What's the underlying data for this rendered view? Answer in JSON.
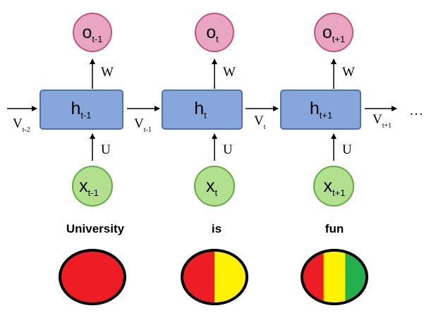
{
  "steps": [
    {
      "output": {
        "base": "o",
        "sub": "t-1"
      },
      "hidden": {
        "base": "h",
        "sub": "t-1"
      },
      "input": {
        "base": "x",
        "sub": "t-1"
      },
      "word": "University",
      "weight_out": "W",
      "weight_in": "U",
      "stripe_colors": [
        "#ee1c25"
      ]
    },
    {
      "output": {
        "base": "o",
        "sub": "t"
      },
      "hidden": {
        "base": "h",
        "sub": "t"
      },
      "input": {
        "base": "x",
        "sub": "t"
      },
      "word": "is",
      "weight_out": "W",
      "weight_in": "U",
      "stripe_colors": [
        "#ee1c25",
        "#fff200"
      ]
    },
    {
      "output": {
        "base": "o",
        "sub": "t+1"
      },
      "hidden": {
        "base": "h",
        "sub": "t+1"
      },
      "input": {
        "base": "x",
        "sub": "t+1"
      },
      "word": "fun",
      "weight_out": "W",
      "weight_in": "U",
      "stripe_colors": [
        "#ee1c25",
        "#fff200",
        "#22b14c"
      ]
    }
  ],
  "transitions": [
    {
      "base": "V",
      "sub": "t-2"
    },
    {
      "base": "V",
      "sub": "t-1"
    },
    {
      "base": "V",
      "sub": "t"
    },
    {
      "base": "V",
      "sub": "t+1"
    }
  ],
  "continuation": "…",
  "colors": {
    "output_fill": "#e8a6c3",
    "output_stroke": "#c2527f",
    "hidden_fill": "#87a6dc",
    "hidden_stroke": "#4f6fae",
    "input_fill": "#b2e08f",
    "input_stroke": "#5fae42"
  }
}
